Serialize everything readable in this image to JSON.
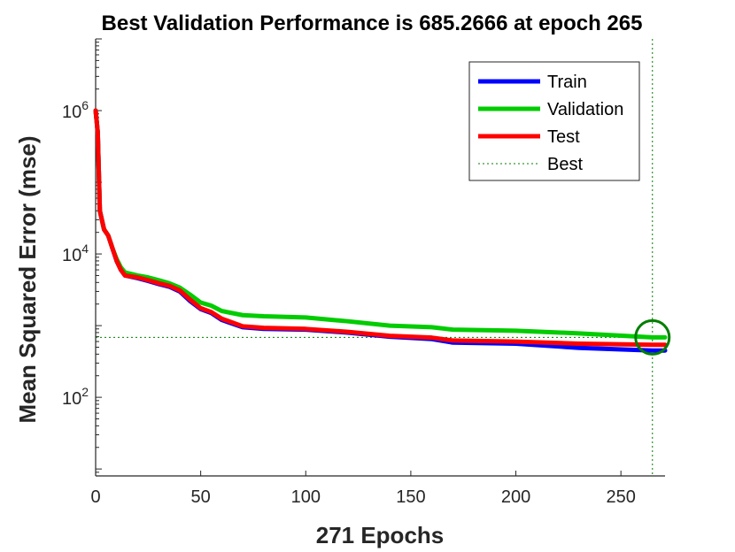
{
  "chart_data": {
    "type": "line",
    "title": "Best Validation Performance is 685.2666 at epoch 265",
    "xlabel": "271 Epochs",
    "ylabel": "Mean Squared Error  (mse)",
    "yscale": "log",
    "xlim": [
      0,
      271
    ],
    "ylim": [
      8,
      10000000
    ],
    "xticks": [
      0,
      50,
      100,
      150,
      200,
      250
    ],
    "yticks": [
      {
        "value": 100,
        "base": "10",
        "exp": "2"
      },
      {
        "value": 10000,
        "base": "10",
        "exp": "4"
      },
      {
        "value": 1000000,
        "base": "10",
        "exp": "6"
      }
    ],
    "best": {
      "epoch": 265,
      "value": 685.2666,
      "label": "Best"
    },
    "series": [
      {
        "name": "Train",
        "color": "#0000ff",
        "x": [
          0,
          1,
          2,
          4,
          6,
          8,
          10,
          12,
          14,
          20,
          25,
          30,
          35,
          40,
          45,
          50,
          55,
          60,
          70,
          80,
          100,
          120,
          140,
          160,
          170,
          200,
          230,
          265,
          271
        ],
        "y": [
          1000000,
          500000,
          40000,
          22000,
          18000,
          12000,
          8000,
          6000,
          5000,
          4600,
          4200,
          3800,
          3500,
          3000,
          2200,
          1700,
          1500,
          1200,
          950,
          900,
          880,
          800,
          700,
          650,
          580,
          560,
          490,
          450,
          450
        ]
      },
      {
        "name": "Validation",
        "color": "#00cc00",
        "x": [
          0,
          1,
          2,
          4,
          6,
          8,
          10,
          12,
          14,
          20,
          25,
          30,
          35,
          40,
          45,
          50,
          55,
          60,
          70,
          80,
          100,
          120,
          140,
          160,
          170,
          200,
          230,
          265,
          271
        ],
        "y": [
          1000000,
          500000,
          40000,
          22000,
          18000,
          12000,
          8500,
          6500,
          5500,
          5000,
          4700,
          4300,
          3900,
          3400,
          2700,
          2100,
          1900,
          1600,
          1400,
          1350,
          1300,
          1150,
          1000,
          950,
          880,
          850,
          780,
          685.2666,
          685
        ]
      },
      {
        "name": "Test",
        "color": "#ff0000",
        "x": [
          0,
          1,
          2,
          4,
          6,
          8,
          10,
          12,
          14,
          20,
          25,
          30,
          35,
          40,
          45,
          50,
          55,
          60,
          70,
          80,
          100,
          120,
          140,
          160,
          170,
          200,
          230,
          265,
          271
        ],
        "y": [
          1000000,
          500000,
          40000,
          22000,
          18000,
          12000,
          8000,
          6000,
          5000,
          4700,
          4300,
          3900,
          3600,
          3100,
          2300,
          1750,
          1550,
          1250,
          980,
          930,
          900,
          820,
          720,
          680,
          620,
          600,
          560,
          540,
          540
        ]
      }
    ],
    "legend": {
      "position": "top-right",
      "entries": [
        {
          "label": "Train",
          "color": "#0000ff",
          "style": "solid"
        },
        {
          "label": "Validation",
          "color": "#00cc00",
          "style": "solid"
        },
        {
          "label": "Test",
          "color": "#ff0000",
          "style": "solid"
        },
        {
          "label": "Best",
          "color": "#007f00",
          "style": "dotted"
        }
      ]
    },
    "best_marker_color": "#007f00"
  }
}
